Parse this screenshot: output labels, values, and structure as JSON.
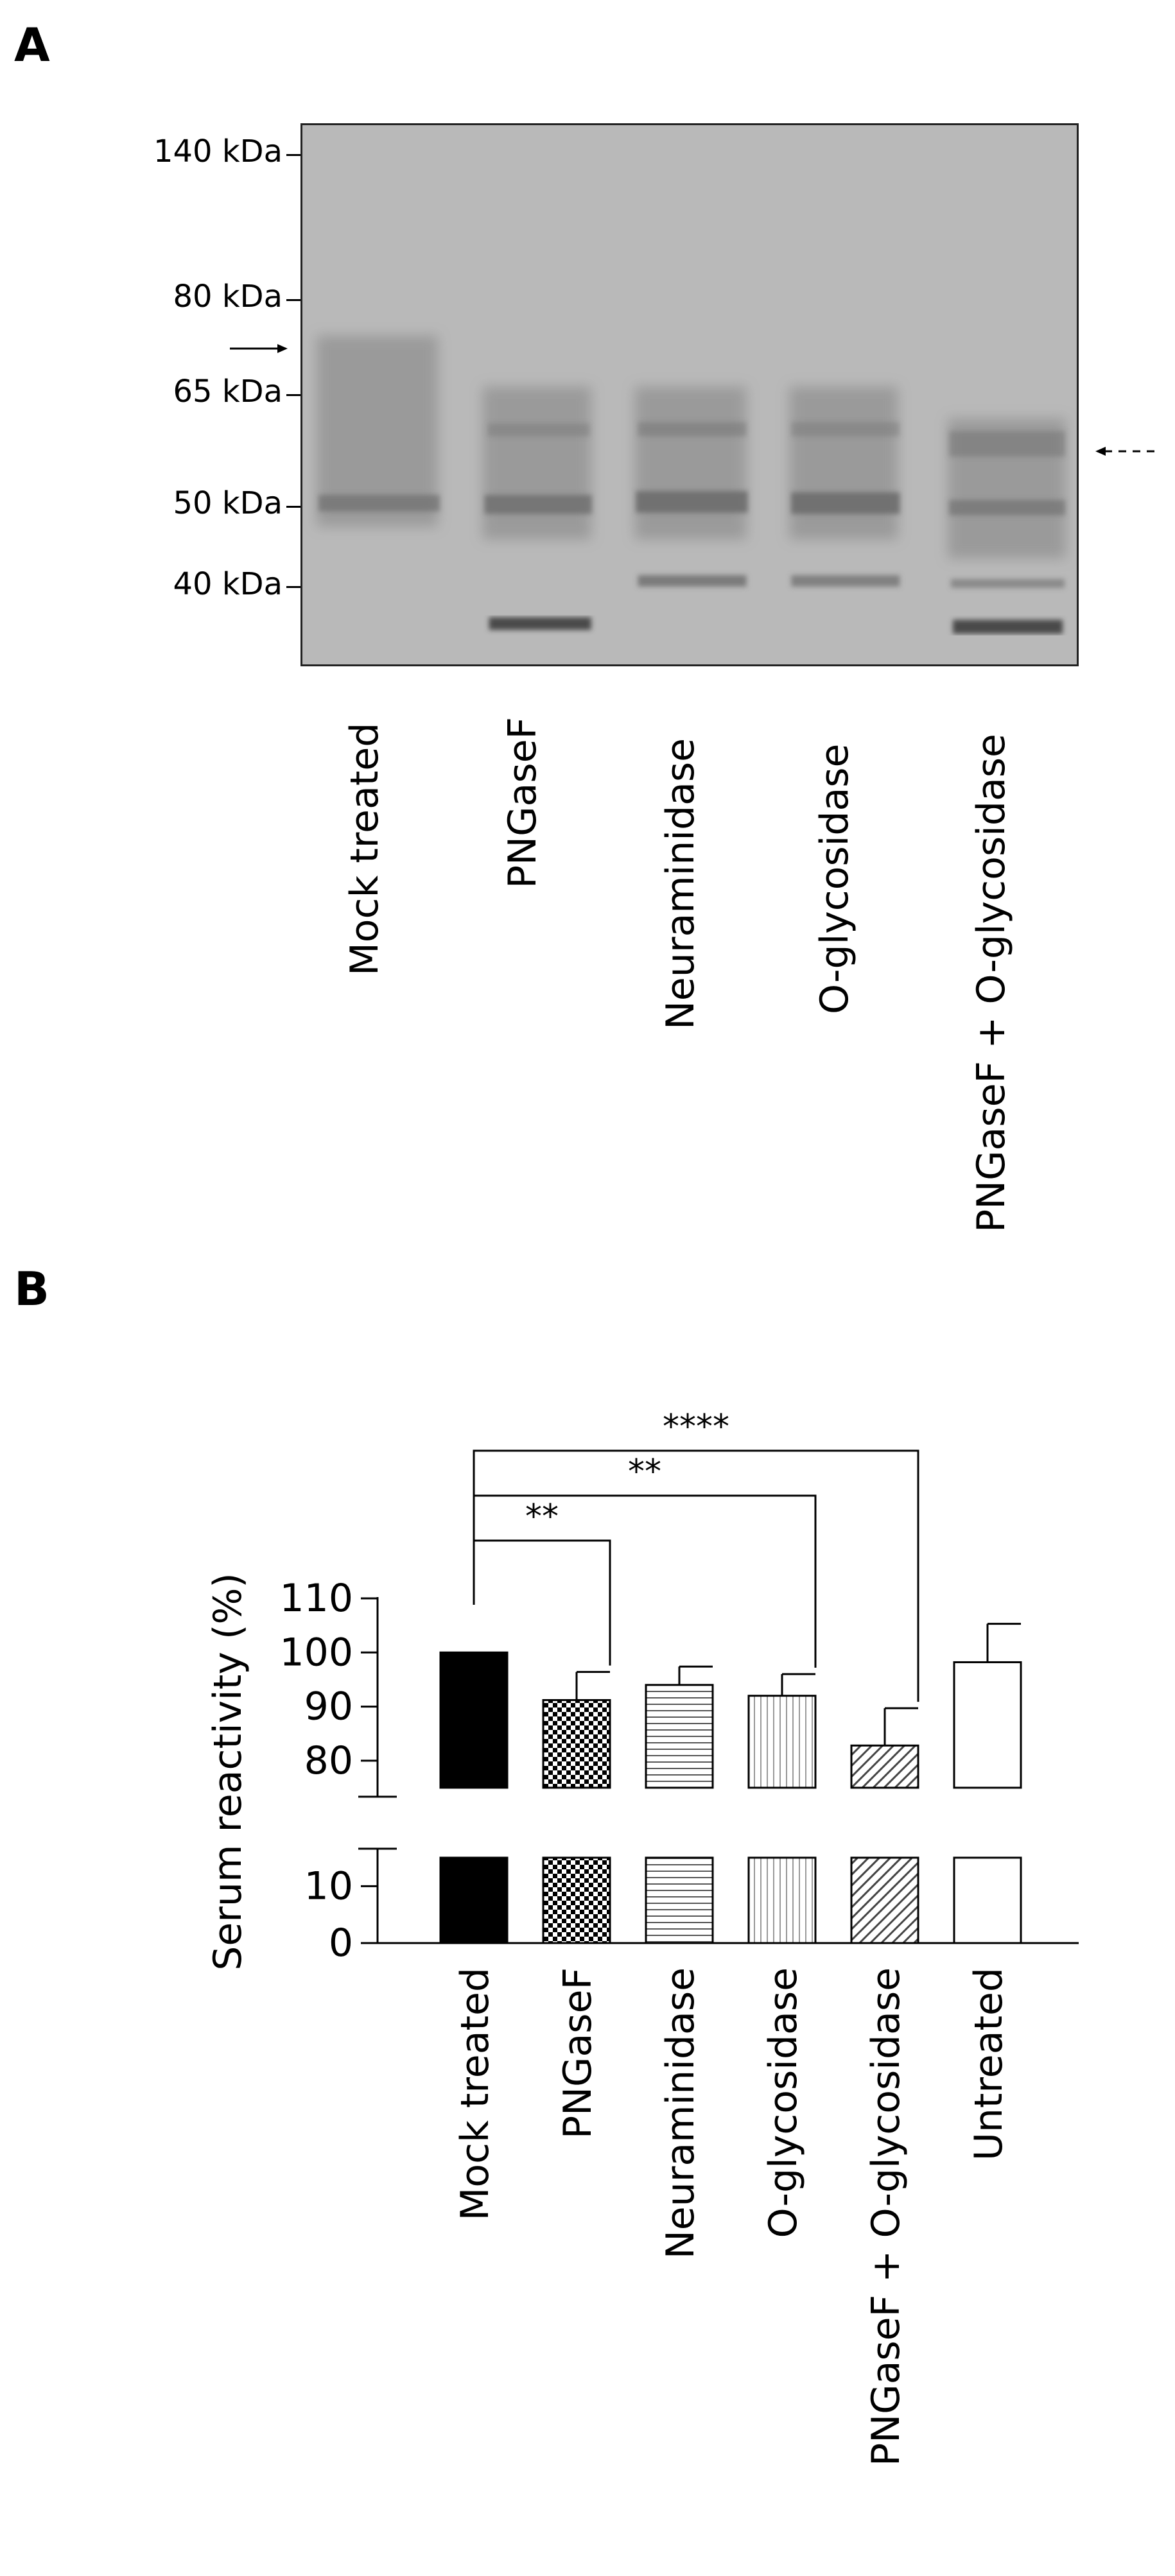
{
  "panels": {
    "a_letter": "A",
    "b_letter": "B"
  },
  "blot": {
    "markers": [
      "140 kDa",
      "80 kDa",
      "65 kDa",
      "50 kDa",
      "40 kDa"
    ],
    "lanes": [
      "Mock treated",
      "PNGaseF",
      "Neuraminidase",
      "O-glycosidase",
      "PNGaseF + O-glycosidase"
    ],
    "colors": {
      "background": "#b9b9b9",
      "band": "#5a5a5a"
    }
  },
  "chart_data": {
    "type": "bar",
    "categories": [
      "Mock treated",
      "PNGaseF",
      "Neuraminidase",
      "O-glycosidase",
      "PNGaseF + O-glycosidase",
      "Untreated"
    ],
    "values": [
      100,
      91.2,
      94.0,
      92.0,
      82.8,
      98.2
    ],
    "errors": [
      0,
      5.2,
      3.4,
      4.0,
      6.9,
      7.1
    ],
    "fills": [
      "solid black",
      "checkerboard",
      "horizontal lines",
      "vertical lines",
      "diagonal lines",
      "white"
    ],
    "xlabel": "",
    "ylabel": "Serum reactivity (%)",
    "ylim": [
      0,
      110
    ],
    "axis_break": [
      15,
      75
    ],
    "yticks": [
      "110",
      "100",
      "90",
      "80",
      "10",
      "0"
    ],
    "significance": [
      {
        "from": "Mock treated",
        "to": "PNGaseF",
        "label": "**"
      },
      {
        "from": "Mock treated",
        "to": "O-glycosidase",
        "label": "**"
      },
      {
        "from": "Mock treated",
        "to": "PNGaseF + O-glycosidase",
        "label": "****"
      }
    ],
    "grid": false,
    "legend": "none"
  }
}
